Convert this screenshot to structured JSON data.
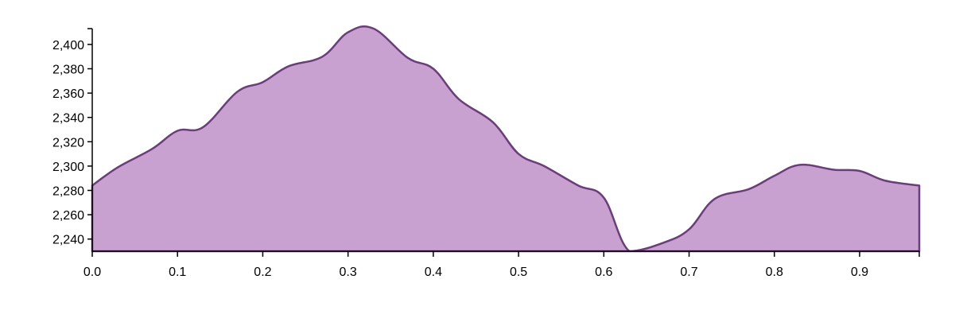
{
  "chart_data": {
    "type": "area",
    "title": "",
    "xlabel": "",
    "ylabel": "",
    "xlim": [
      0,
      0.97
    ],
    "ylim": [
      2230,
      2413
    ],
    "x_ticks": [
      "0.0",
      "0.1",
      "0.2",
      "0.3",
      "0.4",
      "0.5",
      "0.6",
      "0.7",
      "0.8",
      "0.9"
    ],
    "y_ticks": [
      "2,240",
      "2,260",
      "2,280",
      "2,300",
      "2,320",
      "2,340",
      "2,360",
      "2,380",
      "2,400"
    ],
    "grid": false,
    "series": [
      {
        "fill_color": "#c9a1d1",
        "line_color": "#6a3e78",
        "x": [
          0.0,
          0.03,
          0.07,
          0.1,
          0.13,
          0.17,
          0.2,
          0.23,
          0.27,
          0.3,
          0.33,
          0.37,
          0.4,
          0.43,
          0.47,
          0.5,
          0.53,
          0.57,
          0.6,
          0.63,
          0.67,
          0.7,
          0.73,
          0.77,
          0.8,
          0.83,
          0.87,
          0.9,
          0.93,
          0.97
        ],
        "y": [
          2284,
          2299,
          2314,
          2329,
          2332,
          2361,
          2369,
          2382,
          2390,
          2410,
          2413,
          2389,
          2380,
          2355,
          2336,
          2310,
          2300,
          2284,
          2274,
          2230,
          2237,
          2248,
          2273,
          2281,
          2292,
          2301,
          2297,
          2296,
          2288,
          2284
        ]
      }
    ]
  }
}
